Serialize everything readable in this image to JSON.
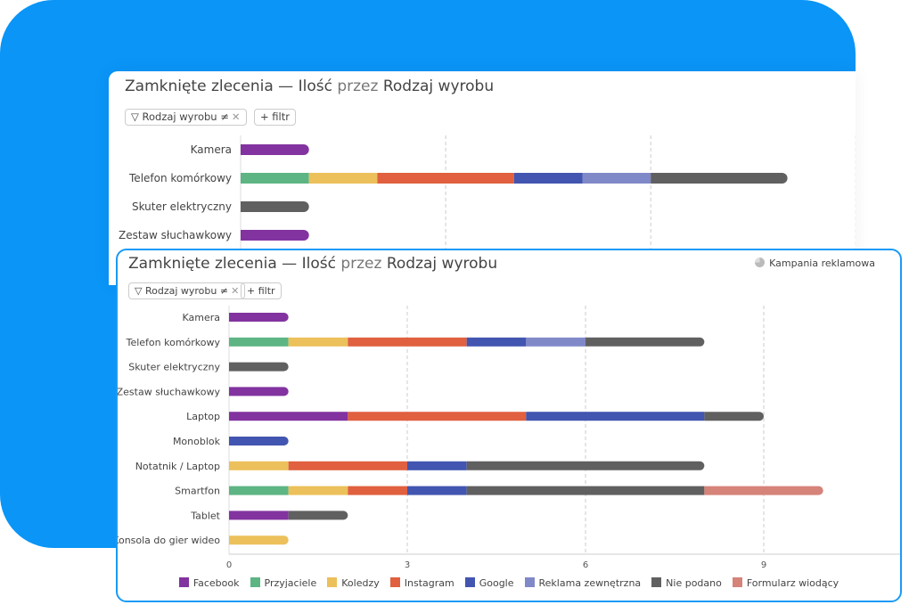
{
  "background_card": {
    "title_prefix": "Zamknięte zlecenia — Ilość",
    "title_by": "przez",
    "title_suffix": "Rodzaj wyrobu",
    "filter_chip": "Rodzaj wyrobu ≠",
    "add_filter": "+ filtr"
  },
  "front_card": {
    "title_prefix": "Zamknięte zlecenia — Ilość",
    "title_by": "przez",
    "title_suffix": "Rodzaj wyrobu",
    "filter_chip": "Rodzaj wyrobu ≠",
    "add_filter": "+ filtr",
    "group_by_label": "Kampania reklamowa",
    "group_by_icon": "pie-chart-icon"
  },
  "chart_data": {
    "type": "bar",
    "orientation": "horizontal",
    "stacked": true,
    "categories": [
      "Kamera",
      "Telefon komórkowy",
      "Skuter elektryczny",
      "Zestaw słuchawkowy",
      "Laptop",
      "Monoblok",
      "Notatnik / Laptop",
      "Smartfon",
      "Tablet",
      "Konsola do gier wideo"
    ],
    "series": [
      {
        "name": "Facebook",
        "color": "#8233a0",
        "values": [
          1,
          0,
          0,
          1,
          2,
          0,
          0,
          0,
          1,
          0
        ]
      },
      {
        "name": "Przyjaciele",
        "color": "#5db583",
        "values": [
          0,
          1,
          0,
          0,
          0,
          0,
          0,
          1,
          0,
          0
        ]
      },
      {
        "name": "Koledzy",
        "color": "#ecc05a",
        "values": [
          0,
          1,
          0,
          0,
          0,
          0,
          1,
          1,
          0,
          1
        ]
      },
      {
        "name": "Instagram",
        "color": "#e0603f",
        "values": [
          0,
          2,
          0,
          0,
          3,
          0,
          2,
          1,
          0,
          0
        ]
      },
      {
        "name": "Google",
        "color": "#4255b0",
        "values": [
          0,
          1,
          0,
          0,
          3,
          1,
          1,
          1,
          0,
          0
        ]
      },
      {
        "name": "Reklama zewnętrzna",
        "color": "#8089c8",
        "values": [
          0,
          1,
          0,
          0,
          0,
          0,
          0,
          0,
          0,
          0
        ]
      },
      {
        "name": "Nie podano",
        "color": "#606060",
        "values": [
          0,
          2,
          1,
          0,
          1,
          0,
          4,
          4,
          1,
          0
        ]
      },
      {
        "name": "Formularz wiodący",
        "color": "#d6837a",
        "values": [
          0,
          0,
          0,
          0,
          0,
          0,
          0,
          2,
          0,
          0
        ]
      }
    ],
    "xticks": [
      "0",
      "3",
      "6",
      "9"
    ],
    "xlim": [
      0,
      11.5
    ],
    "grid": "vertical dashed",
    "legend": "bottom"
  }
}
